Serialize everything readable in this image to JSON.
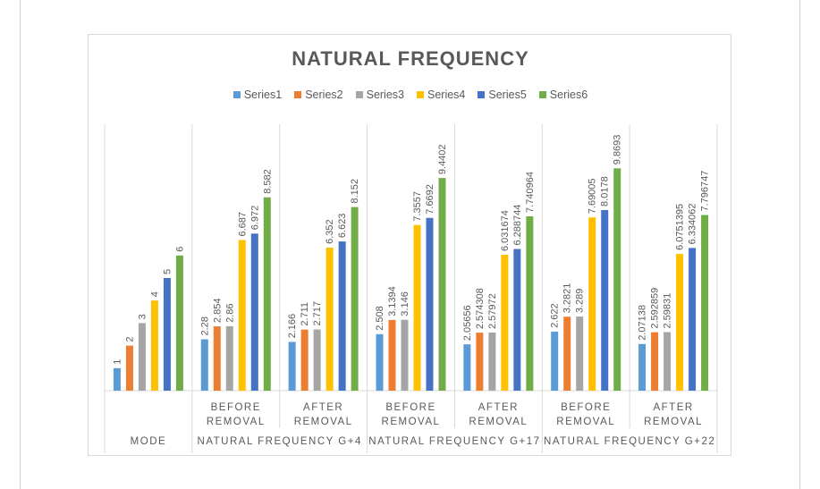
{
  "chart_data": {
    "type": "bar",
    "title": "NATURAL FREQUENCY",
    "xlabel": "",
    "ylabel": "",
    "ylim": [
      0,
      11
    ],
    "grid": false,
    "legend_position": "top",
    "categories": [
      {
        "label": "MODE",
        "group": "MODE"
      },
      {
        "label": "BEFORE REMOVAL",
        "group": "NATURAL FREQUENCY G+4"
      },
      {
        "label": "AFTER REMOVAL",
        "group": "NATURAL FREQUENCY G+4"
      },
      {
        "label": "BEFORE REMOVAL",
        "group": "NATURAL FREQUENCY G+17"
      },
      {
        "label": "AFTER REMOVAL",
        "group": "NATURAL FREQUENCY G+17"
      },
      {
        "label": "BEFORE REMOVAL",
        "group": "NATURAL FREQUENCY G+22"
      },
      {
        "label": "AFTER REMOVAL",
        "group": "NATURAL FREQUENCY G+22"
      }
    ],
    "groups": [
      "MODE",
      "NATURAL FREQUENCY G+4",
      "NATURAL FREQUENCY G+17",
      "NATURAL FREQUENCY G+22"
    ],
    "series": [
      {
        "name": "Series1",
        "color": "#5b9bd5",
        "values": [
          1,
          2.28,
          2.166,
          2.508,
          2.05656,
          2.622,
          2.07138
        ],
        "labels": [
          "1",
          "2.28",
          "2.166",
          "2.508",
          "2.05656",
          "2.622",
          "2.07138"
        ]
      },
      {
        "name": "Series2",
        "color": "#ed7d31",
        "values": [
          2,
          2.854,
          2.711,
          3.1394,
          2.574308,
          3.2821,
          2.592859
        ],
        "labels": [
          "2",
          "2.854",
          "2.711",
          "3.1394",
          "2.574308",
          "3.2821",
          "2.592859"
        ]
      },
      {
        "name": "Series3",
        "color": "#a5a5a5",
        "values": [
          3,
          2.86,
          2.717,
          3.146,
          2.57972,
          3.289,
          2.59831
        ],
        "labels": [
          "3",
          "2.86",
          "2.717",
          "3.146",
          "2.57972",
          "3.289",
          "2.59831"
        ]
      },
      {
        "name": "Series4",
        "color": "#ffc000",
        "values": [
          4,
          6.687,
          6.352,
          7.3557,
          6.031674,
          7.69005,
          6.0751395
        ],
        "labels": [
          "4",
          "6.687",
          "6.352",
          "7.3557",
          "6.031674",
          "7.69005",
          "6.0751395"
        ]
      },
      {
        "name": "Series5",
        "color": "#4472c4",
        "values": [
          5,
          6.972,
          6.623,
          7.6692,
          6.288744,
          8.0178,
          6.334062
        ],
        "labels": [
          "5",
          "6.972",
          "6.623",
          "7.6692",
          "6.288744",
          "8.0178",
          "6.334062"
        ]
      },
      {
        "name": "Series6",
        "color": "#70ad47",
        "values": [
          6,
          8.582,
          8.152,
          9.4402,
          7.740964,
          9.8693,
          7.796747
        ],
        "labels": [
          "6",
          "8.582",
          "8.152",
          "9.4402",
          "7.740964",
          "9.8693",
          "7.796747"
        ]
      }
    ]
  }
}
